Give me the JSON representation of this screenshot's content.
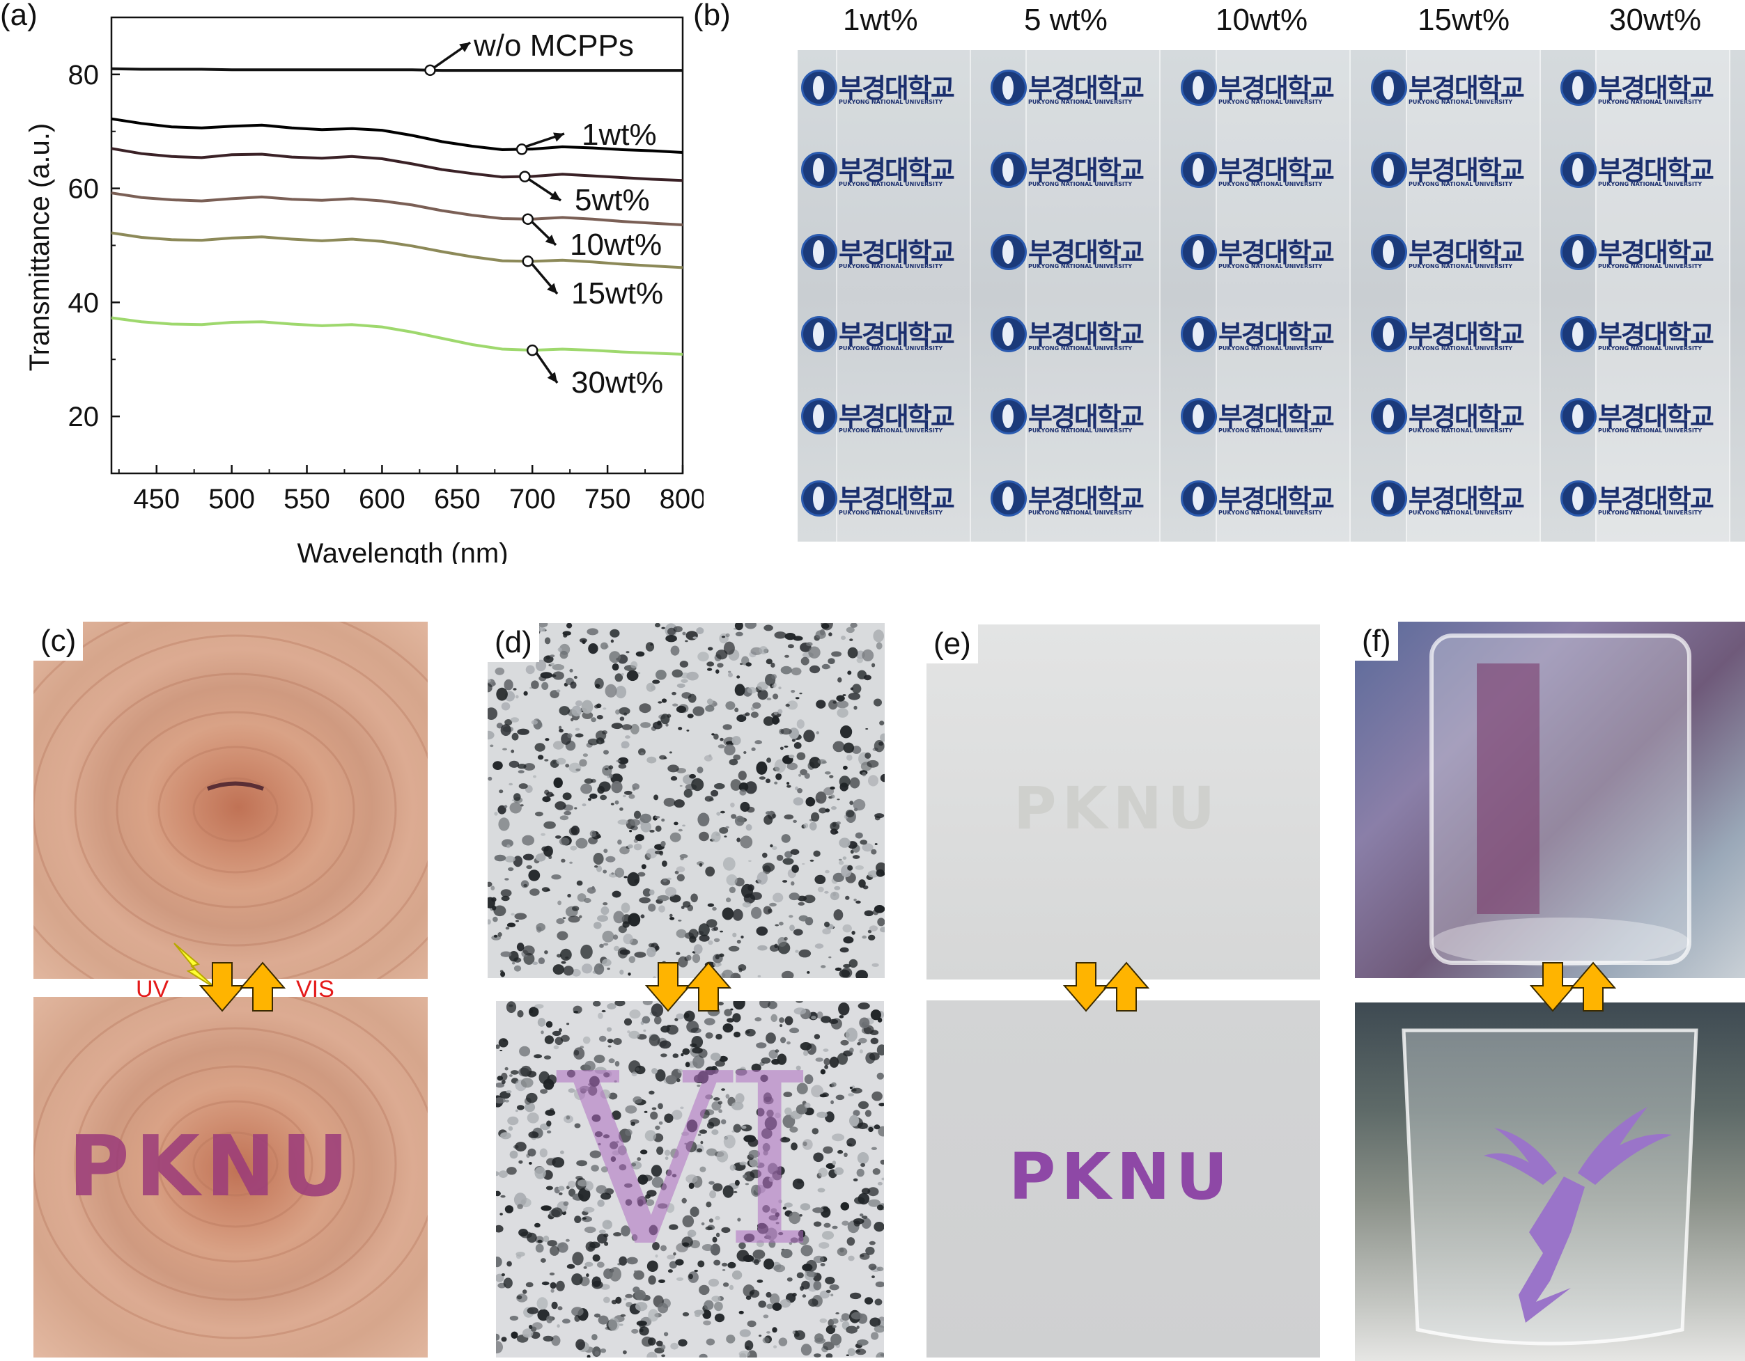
{
  "panel_labels": {
    "a": "(a)",
    "b": "(b)",
    "c": "(c)",
    "d": "(d)",
    "e": "(e)",
    "f": "(f)"
  },
  "chart_data": {
    "type": "line",
    "xlabel": "Wavelength (nm)",
    "ylabel": "Transmittance (a.u.)",
    "xlim": [
      420,
      800
    ],
    "ylim": [
      10,
      90
    ],
    "xticks": [
      450,
      500,
      550,
      600,
      650,
      700,
      750,
      800
    ],
    "yticks": [
      20,
      40,
      60,
      80
    ],
    "grid": false,
    "x": [
      420,
      440,
      460,
      480,
      500,
      520,
      540,
      560,
      580,
      600,
      620,
      640,
      660,
      680,
      700,
      720,
      740,
      760,
      780,
      800
    ],
    "series": [
      {
        "name": "w/o MCPPs",
        "color": "#111111",
        "marker_x": 632,
        "values": [
          81.0,
          80.9,
          80.9,
          80.9,
          80.8,
          80.8,
          80.8,
          80.8,
          80.8,
          80.8,
          80.8,
          80.7,
          80.7,
          80.7,
          80.7,
          80.7,
          80.7,
          80.7,
          80.7,
          80.7
        ]
      },
      {
        "name": "1wt%",
        "color": "#000000",
        "marker_x": 693,
        "values": [
          72.2,
          71.4,
          70.8,
          70.6,
          70.9,
          71.1,
          70.6,
          70.3,
          70.5,
          70.2,
          69.3,
          68.2,
          67.4,
          66.8,
          66.9,
          67.3,
          67.1,
          66.8,
          66.6,
          66.3
        ]
      },
      {
        "name": "5wt%",
        "color": "#3a2126",
        "marker_x": 695,
        "values": [
          67.0,
          66.1,
          65.6,
          65.4,
          65.9,
          66.0,
          65.5,
          65.3,
          65.6,
          65.2,
          64.3,
          63.3,
          62.6,
          62.0,
          62.1,
          62.5,
          62.2,
          61.9,
          61.6,
          61.4
        ]
      },
      {
        "name": "10wt%",
        "color": "#7a5f55",
        "marker_x": 697,
        "values": [
          59.2,
          58.4,
          58.0,
          57.8,
          58.2,
          58.5,
          58.1,
          57.9,
          58.2,
          57.8,
          57.1,
          56.1,
          55.3,
          54.7,
          54.6,
          54.9,
          54.6,
          54.2,
          53.9,
          53.6
        ]
      },
      {
        "name": "15wt%",
        "color": "#8c8958",
        "marker_x": 697,
        "values": [
          52.2,
          51.4,
          51.0,
          50.9,
          51.3,
          51.5,
          51.1,
          50.8,
          51.1,
          50.7,
          49.9,
          48.9,
          48.0,
          47.3,
          47.2,
          47.4,
          47.1,
          46.7,
          46.4,
          46.1
        ]
      },
      {
        "name": "30wt%",
        "color": "#9ed86d",
        "marker_x": 700,
        "values": [
          37.3,
          36.6,
          36.2,
          36.1,
          36.5,
          36.6,
          36.2,
          35.9,
          36.1,
          35.7,
          34.8,
          33.7,
          32.6,
          31.8,
          31.6,
          31.8,
          31.6,
          31.3,
          31.1,
          30.9
        ]
      }
    ]
  },
  "panel_b": {
    "columns": [
      "1wt%",
      "5 wt%",
      "10wt%",
      "15wt%",
      "30wt%"
    ],
    "logo_text": "부경대학교",
    "logo_subtext": "PUKYONG NATIONAL UNIVERSITY"
  },
  "panel_c": {
    "uv_label": "UV",
    "vis_label": "VIS",
    "text_after": "PKNU"
  },
  "panel_d": {
    "text_after": "VI"
  },
  "panel_e": {
    "text_before": "PKNU",
    "text_after": "PKNU"
  },
  "colors": {
    "arrow_fill": "#ffb400",
    "arrow_stroke": "#3a2a00",
    "uv_red": "#e41a1a",
    "photochromic_purple": "#9b4fa6"
  }
}
